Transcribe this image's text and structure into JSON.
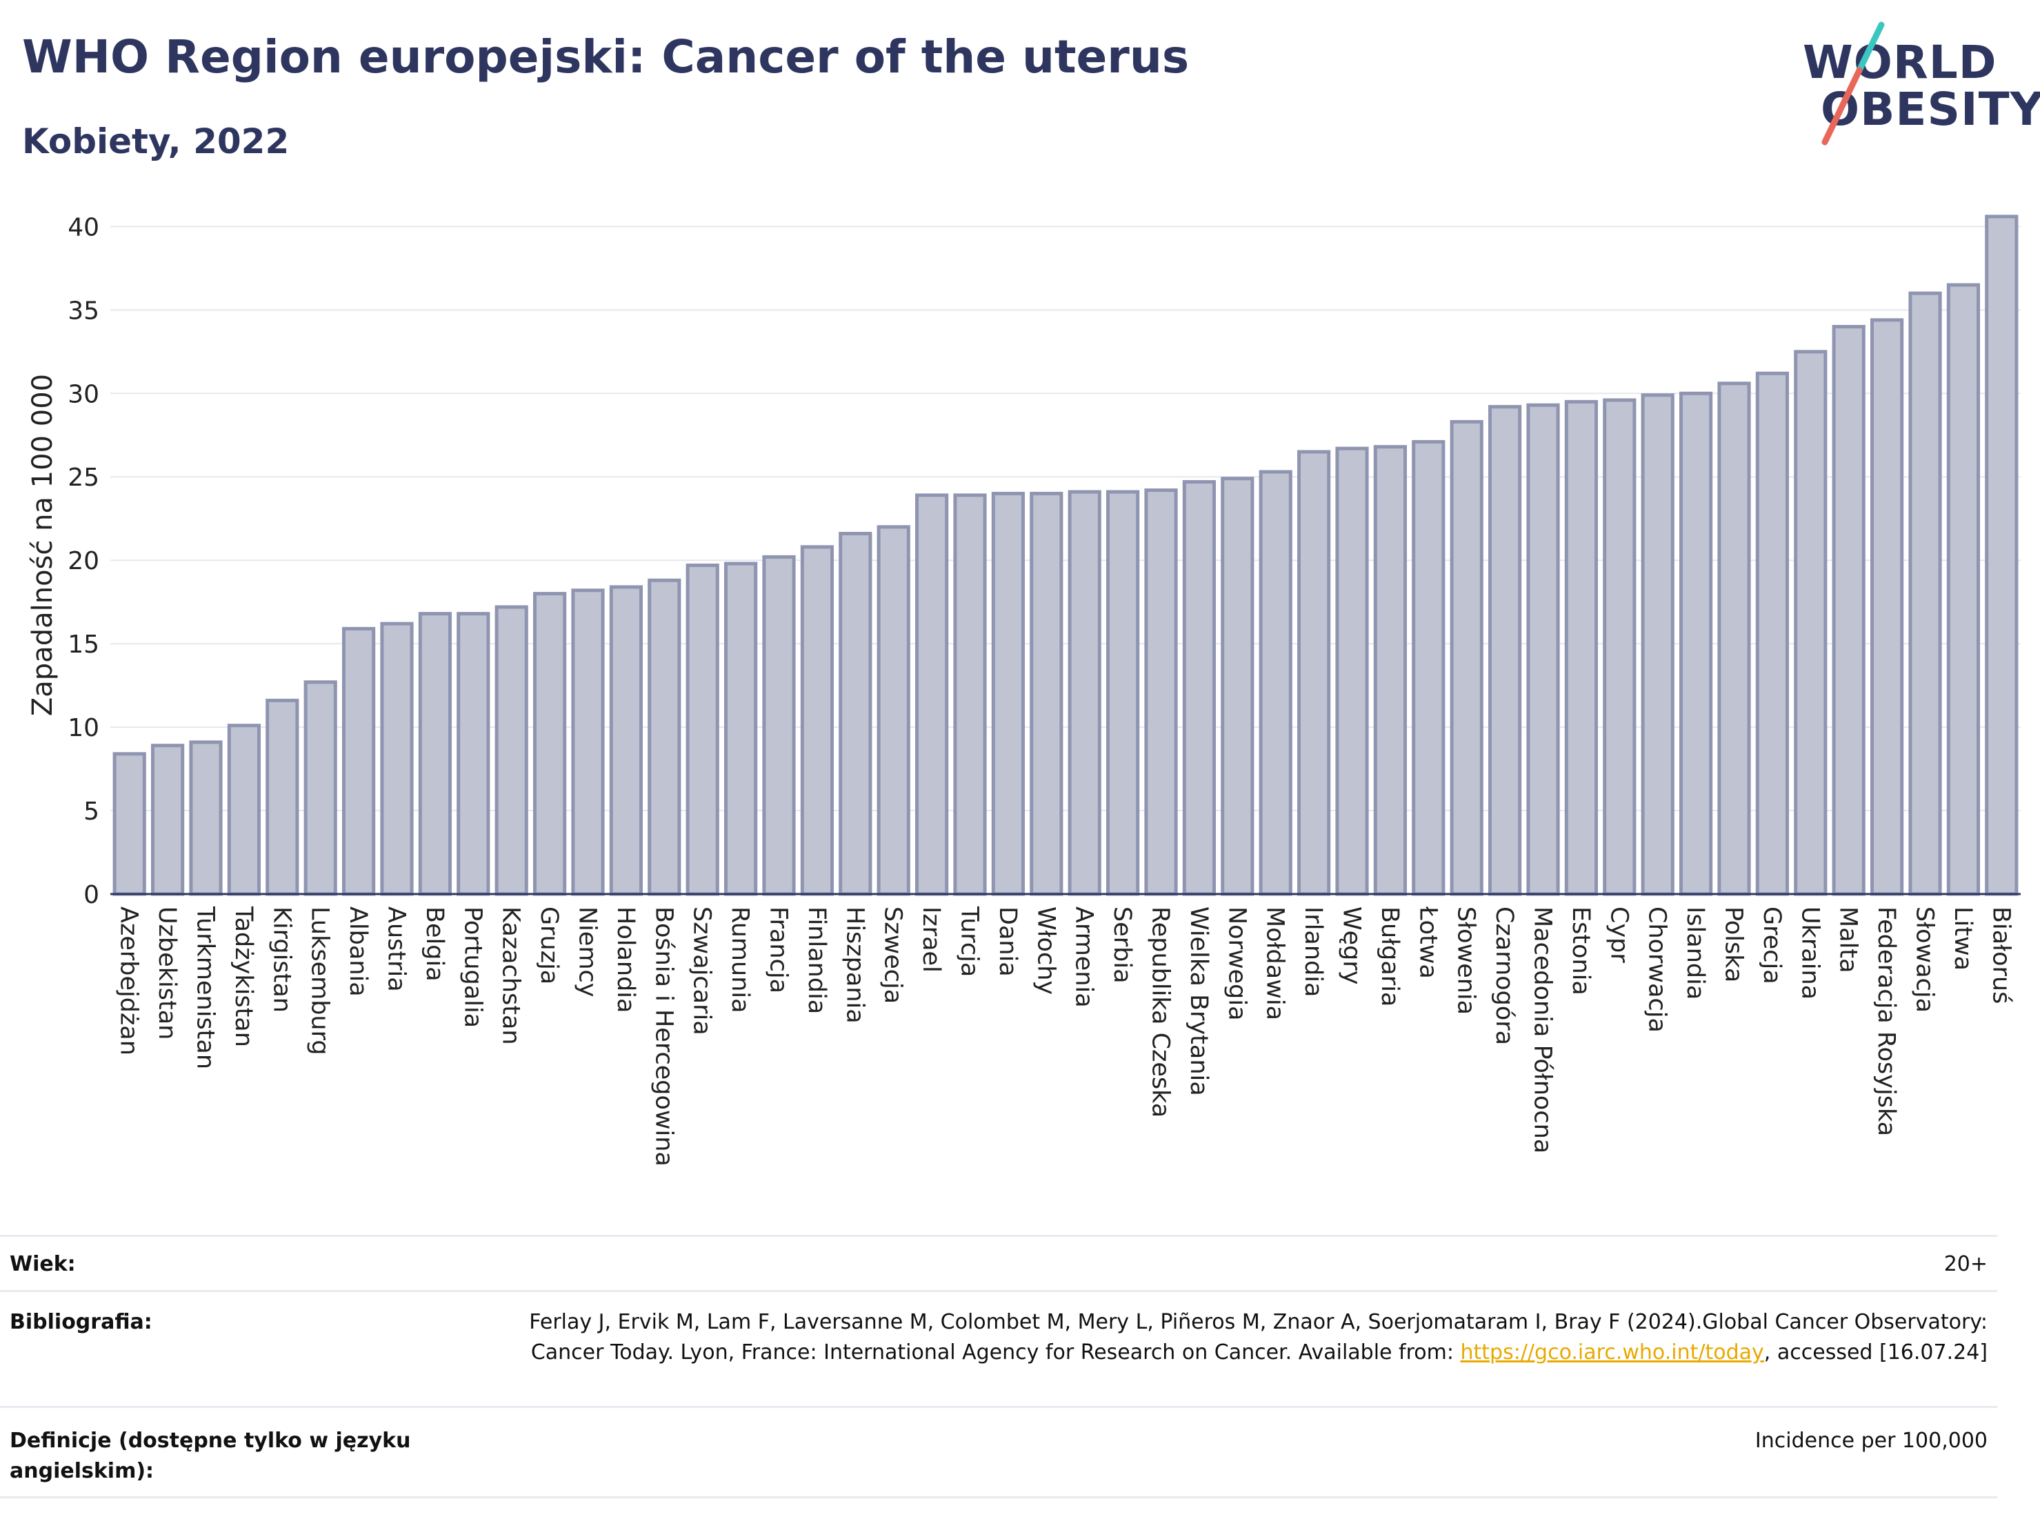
{
  "header": {
    "title": "WHO Region europejski: Cancer of the uterus",
    "subtitle": "Kobiety, 2022"
  },
  "logo": {
    "line1": "WORLD",
    "line2": "OBESITY",
    "colors": {
      "text": "#2e3660",
      "slash_top": "#3cc6c0",
      "slash_bottom": "#e9675a"
    }
  },
  "chart_data": {
    "type": "bar",
    "title": "WHO Region europejski: Cancer of the uterus",
    "subtitle": "Kobiety, 2022",
    "xlabel": "",
    "ylabel": "Zapadalność na 100 000",
    "ylim": [
      0,
      42
    ],
    "yticks": [
      0,
      5,
      10,
      15,
      20,
      25,
      30,
      35,
      40
    ],
    "grid": true,
    "bar_color": "#bfc3d2",
    "bar_border": "#8f95b0",
    "categories": [
      "Azerbejdżan",
      "Uzbekistan",
      "Turkmenistan",
      "Tadżykistan",
      "Kirgistan",
      "Luksemburg",
      "Albania",
      "Austria",
      "Belgia",
      "Portugalia",
      "Kazachstan",
      "Gruzja",
      "Niemcy",
      "Holandia",
      "Bośnia i Hercegowina",
      "Szwajcaria",
      "Rumunia",
      "Francja",
      "Finlandia",
      "Hiszpania",
      "Szwecja",
      "Izrael",
      "Turcja",
      "Dania",
      "Włochy",
      "Armenia",
      "Serbia",
      "Republika Czeska",
      "Wielka Brytania",
      "Norwegia",
      "Mołdawia",
      "Irlandia",
      "Węgry",
      "Bułgaria",
      "Łotwa",
      "Słowenia",
      "Czarnogóra",
      "Macedonia Północna",
      "Estonia",
      "Cypr",
      "Chorwacja",
      "Islandia",
      "Polska",
      "Grecja",
      "Ukraina",
      "Malta",
      "Federacja Rosyjska",
      "Słowacja",
      "Litwa",
      "Białoruś"
    ],
    "values": [
      8.4,
      8.9,
      9.1,
      10.1,
      11.6,
      12.7,
      15.9,
      16.2,
      16.8,
      16.8,
      17.2,
      18.0,
      18.2,
      18.4,
      18.8,
      19.7,
      19.8,
      20.2,
      20.8,
      21.6,
      22.0,
      23.9,
      23.9,
      24.0,
      24.0,
      24.1,
      24.1,
      24.2,
      24.7,
      24.9,
      25.3,
      26.5,
      26.7,
      26.8,
      27.1,
      28.3,
      29.2,
      29.3,
      29.5,
      29.6,
      29.9,
      30.0,
      30.6,
      31.2,
      32.5,
      34.0,
      34.4,
      36.0,
      36.5,
      40.6
    ]
  },
  "info": {
    "age_label": "Wiek:",
    "age_value": "20+",
    "bib_label": "Bibliografia:",
    "bib_text_1": "Ferlay J, Ervik M, Lam F, Laversanne M, Colombet M, Mery L, Piñeros M, Znaor A, Soerjomataram I, Bray F (2024).Global Cancer Observatory: Cancer Today. Lyon, France: International Agency for Research on Cancer. Available from: ",
    "bib_link": "https://gco.iarc.who.int/today",
    "bib_text_2": ", accessed [16.07.24]",
    "def_label": "Definicje (dostępne tylko w języku angielskim):",
    "def_value": "Incidence per 100,000"
  }
}
